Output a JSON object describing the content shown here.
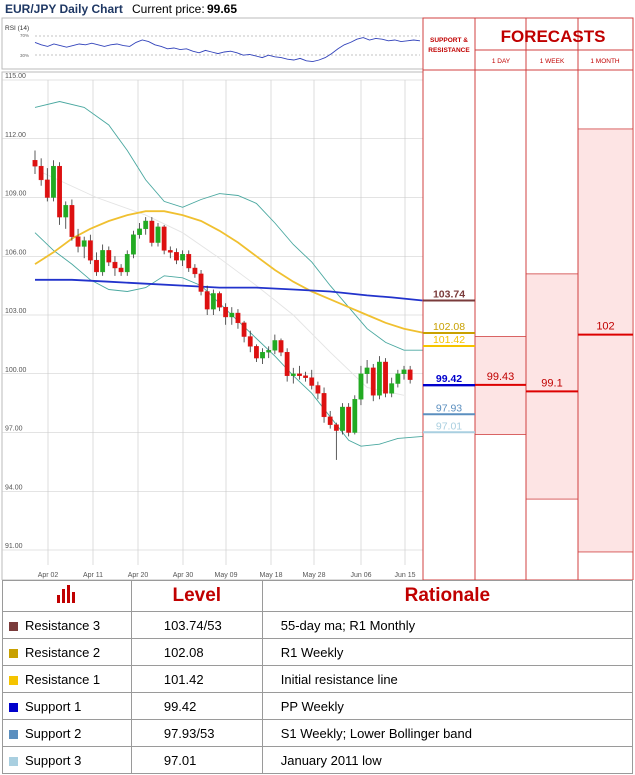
{
  "header": {
    "chart_title": "EUR/JPY Daily Chart",
    "price_label": "Current price:",
    "price_value": "99.65"
  },
  "rsi": {
    "label": "RSI (14)",
    "upper": "70%",
    "lower": "30%"
  },
  "forecast_panel": {
    "sr_title_1": "SUPPORT &",
    "sr_title_2": "RESISTANCE",
    "title": "FORECASTS",
    "columns": [
      "1 DAY",
      "1 WEEK",
      "1 MONTH"
    ],
    "values": [
      "99.43",
      "99.1",
      "102"
    ]
  },
  "colors": {
    "resistance_3": "#7a3b3b",
    "resistance_2": "#c8a000",
    "resistance_1": "#f5c400",
    "support_1": "#0000cc",
    "support_2": "#5b8fbf",
    "support_3": "#a9cfe0",
    "up_candle": "#22aa22",
    "down_candle": "#dd1111",
    "ma_short": "#f0c030",
    "ma_long": "#2233cc",
    "bollinger": "#4aa8a0",
    "forecast_line": "#dd0000",
    "forecast_fill": "#fde4e4"
  },
  "chart_data": {
    "type": "candlestick",
    "title": "EUR/JPY Daily Chart",
    "ylim": [
      91.0,
      115.0
    ],
    "y_ticks": [
      "115.00",
      "112.00",
      "109.00",
      "106.00",
      "103.00",
      "100.00",
      "97.00",
      "94.00",
      "91.00"
    ],
    "x_ticks": [
      "Apr 02",
      "Apr 11",
      "Apr 20",
      "Apr 30",
      "May 09",
      "May 18",
      "May 28",
      "Jun 06",
      "Jun 15"
    ],
    "candles": [
      {
        "o": 110.9,
        "h": 111.4,
        "l": 110.2,
        "c": 110.6
      },
      {
        "o": 110.6,
        "h": 111.0,
        "l": 109.6,
        "c": 109.9
      },
      {
        "o": 109.9,
        "h": 110.5,
        "l": 108.8,
        "c": 109.0
      },
      {
        "o": 109.0,
        "h": 110.9,
        "l": 108.8,
        "c": 110.6
      },
      {
        "o": 110.6,
        "h": 110.8,
        "l": 107.6,
        "c": 108.0
      },
      {
        "o": 108.0,
        "h": 108.8,
        "l": 107.4,
        "c": 108.6
      },
      {
        "o": 108.6,
        "h": 108.9,
        "l": 106.8,
        "c": 107.0
      },
      {
        "o": 107.0,
        "h": 107.4,
        "l": 106.2,
        "c": 106.5
      },
      {
        "o": 106.5,
        "h": 107.0,
        "l": 105.9,
        "c": 106.8
      },
      {
        "o": 106.8,
        "h": 107.1,
        "l": 105.6,
        "c": 105.8
      },
      {
        "o": 105.8,
        "h": 106.2,
        "l": 105.0,
        "c": 105.2
      },
      {
        "o": 105.2,
        "h": 106.6,
        "l": 105.0,
        "c": 106.3
      },
      {
        "o": 106.3,
        "h": 106.5,
        "l": 105.5,
        "c": 105.7
      },
      {
        "o": 105.7,
        "h": 106.0,
        "l": 105.0,
        "c": 105.4
      },
      {
        "o": 105.4,
        "h": 105.6,
        "l": 105.0,
        "c": 105.2
      },
      {
        "o": 105.2,
        "h": 106.3,
        "l": 105.0,
        "c": 106.1
      },
      {
        "o": 106.1,
        "h": 107.3,
        "l": 105.9,
        "c": 107.1
      },
      {
        "o": 107.1,
        "h": 107.7,
        "l": 106.9,
        "c": 107.4
      },
      {
        "o": 107.4,
        "h": 108.0,
        "l": 107.1,
        "c": 107.8
      },
      {
        "o": 107.8,
        "h": 108.0,
        "l": 106.5,
        "c": 106.7
      },
      {
        "o": 106.7,
        "h": 107.7,
        "l": 106.5,
        "c": 107.5
      },
      {
        "o": 107.5,
        "h": 107.6,
        "l": 106.1,
        "c": 106.3
      },
      {
        "o": 106.3,
        "h": 106.5,
        "l": 105.9,
        "c": 106.2
      },
      {
        "o": 106.2,
        "h": 106.4,
        "l": 105.6,
        "c": 105.8
      },
      {
        "o": 105.8,
        "h": 106.3,
        "l": 105.5,
        "c": 106.1
      },
      {
        "o": 106.1,
        "h": 106.3,
        "l": 105.2,
        "c": 105.4
      },
      {
        "o": 105.4,
        "h": 105.6,
        "l": 104.9,
        "c": 105.1
      },
      {
        "o": 105.1,
        "h": 105.3,
        "l": 104.0,
        "c": 104.2
      },
      {
        "o": 104.2,
        "h": 104.5,
        "l": 103.0,
        "c": 103.3
      },
      {
        "o": 103.3,
        "h": 104.3,
        "l": 103.0,
        "c": 104.1
      },
      {
        "o": 104.1,
        "h": 104.2,
        "l": 103.2,
        "c": 103.4
      },
      {
        "o": 103.4,
        "h": 103.6,
        "l": 102.5,
        "c": 102.9
      },
      {
        "o": 102.9,
        "h": 103.4,
        "l": 102.5,
        "c": 103.1
      },
      {
        "o": 103.1,
        "h": 103.3,
        "l": 102.3,
        "c": 102.6
      },
      {
        "o": 102.6,
        "h": 102.7,
        "l": 101.6,
        "c": 101.9
      },
      {
        "o": 101.9,
        "h": 102.2,
        "l": 101.1,
        "c": 101.4
      },
      {
        "o": 101.4,
        "h": 101.5,
        "l": 100.6,
        "c": 100.8
      },
      {
        "o": 100.8,
        "h": 101.3,
        "l": 100.5,
        "c": 101.1
      },
      {
        "o": 101.1,
        "h": 101.4,
        "l": 100.8,
        "c": 101.2
      },
      {
        "o": 101.2,
        "h": 102.0,
        "l": 101.0,
        "c": 101.7
      },
      {
        "o": 101.7,
        "h": 101.8,
        "l": 100.9,
        "c": 101.1
      },
      {
        "o": 101.1,
        "h": 101.3,
        "l": 99.6,
        "c": 99.9
      },
      {
        "o": 99.9,
        "h": 100.3,
        "l": 99.5,
        "c": 100.0
      },
      {
        "o": 100.0,
        "h": 100.4,
        "l": 99.7,
        "c": 99.9
      },
      {
        "o": 99.9,
        "h": 100.1,
        "l": 99.6,
        "c": 99.8
      },
      {
        "o": 99.8,
        "h": 100.2,
        "l": 99.2,
        "c": 99.4
      },
      {
        "o": 99.4,
        "h": 99.6,
        "l": 98.7,
        "c": 99.0
      },
      {
        "o": 99.0,
        "h": 99.3,
        "l": 97.5,
        "c": 97.8
      },
      {
        "o": 97.8,
        "h": 98.1,
        "l": 97.2,
        "c": 97.4
      },
      {
        "o": 97.4,
        "h": 97.5,
        "l": 95.6,
        "c": 97.1
      },
      {
        "o": 97.1,
        "h": 98.5,
        "l": 96.9,
        "c": 98.3
      },
      {
        "o": 98.3,
        "h": 98.5,
        "l": 96.8,
        "c": 97.0
      },
      {
        "o": 97.0,
        "h": 98.9,
        "l": 96.9,
        "c": 98.7
      },
      {
        "o": 98.7,
        "h": 100.4,
        "l": 98.4,
        "c": 100.0
      },
      {
        "o": 100.0,
        "h": 100.7,
        "l": 99.5,
        "c": 100.3
      },
      {
        "o": 100.3,
        "h": 100.5,
        "l": 98.6,
        "c": 98.9
      },
      {
        "o": 98.9,
        "h": 100.9,
        "l": 98.7,
        "c": 100.6
      },
      {
        "o": 100.6,
        "h": 100.8,
        "l": 98.8,
        "c": 99.0
      },
      {
        "o": 99.0,
        "h": 99.8,
        "l": 98.8,
        "c": 99.5
      },
      {
        "o": 99.5,
        "h": 100.2,
        "l": 99.3,
        "c": 100.0
      },
      {
        "o": 100.0,
        "h": 100.4,
        "l": 99.7,
        "c": 100.2
      },
      {
        "o": 100.2,
        "h": 100.4,
        "l": 99.5,
        "c": 99.7
      }
    ],
    "ma_short": [
      [
        0,
        105.6
      ],
      [
        3,
        106.2
      ],
      [
        6,
        106.9
      ],
      [
        9,
        107.4
      ],
      [
        12,
        107.8
      ],
      [
        15,
        108.1
      ],
      [
        18,
        108.3
      ],
      [
        21,
        108.3
      ],
      [
        24,
        108.1
      ],
      [
        27,
        107.8
      ],
      [
        30,
        107.3
      ],
      [
        33,
        106.7
      ],
      [
        36,
        106.0
      ],
      [
        39,
        105.3
      ],
      [
        42,
        104.7
      ],
      [
        45,
        104.2
      ],
      [
        48,
        103.8
      ],
      [
        51,
        103.4
      ],
      [
        54,
        103.0
      ],
      [
        57,
        102.6
      ],
      [
        60,
        102.3
      ],
      [
        63,
        102.1
      ]
    ],
    "ma_long": [
      [
        0,
        104.8
      ],
      [
        6,
        104.8
      ],
      [
        12,
        104.7
      ],
      [
        18,
        104.6
      ],
      [
        24,
        104.5
      ],
      [
        30,
        104.4
      ],
      [
        36,
        104.4
      ],
      [
        42,
        104.3
      ],
      [
        48,
        104.2
      ],
      [
        54,
        104.0
      ],
      [
        58,
        103.9
      ],
      [
        63,
        103.74
      ]
    ],
    "bb_upper": [
      [
        0,
        113.6
      ],
      [
        4,
        113.9
      ],
      [
        8,
        113.6
      ],
      [
        12,
        112.7
      ],
      [
        15,
        111.4
      ],
      [
        18,
        109.9
      ],
      [
        21,
        108.8
      ],
      [
        24,
        108.5
      ],
      [
        27,
        108.9
      ],
      [
        30,
        109.2
      ],
      [
        33,
        109.1
      ],
      [
        36,
        108.7
      ],
      [
        39,
        107.7
      ],
      [
        42,
        106.6
      ],
      [
        45,
        105.7
      ],
      [
        48,
        104.5
      ],
      [
        51,
        103.4
      ],
      [
        54,
        102.3
      ],
      [
        57,
        101.6
      ],
      [
        60,
        101.2
      ],
      [
        63,
        101.2
      ]
    ],
    "bb_lower": [
      [
        0,
        107.2
      ],
      [
        3,
        106.3
      ],
      [
        6,
        105.6
      ],
      [
        9,
        104.8
      ],
      [
        12,
        104.3
      ],
      [
        15,
        104.2
      ],
      [
        18,
        104.4
      ],
      [
        21,
        105.0
      ],
      [
        24,
        104.9
      ],
      [
        27,
        104.5
      ],
      [
        30,
        103.6
      ],
      [
        33,
        102.7
      ],
      [
        36,
        101.8
      ],
      [
        39,
        100.9
      ],
      [
        42,
        99.9
      ],
      [
        45,
        99.0
      ],
      [
        48,
        97.8
      ],
      [
        51,
        96.6
      ],
      [
        53,
        96.3
      ],
      [
        56,
        96.4
      ],
      [
        59,
        96.7
      ],
      [
        63,
        96.8
      ]
    ],
    "mid_line": [
      [
        1,
        110.3
      ],
      [
        10,
        109.0
      ],
      [
        18,
        108.1
      ],
      [
        24,
        107.2
      ],
      [
        30,
        105.9
      ],
      [
        36,
        104.5
      ],
      [
        42,
        103.0
      ],
      [
        48,
        101.1
      ],
      [
        54,
        99.3
      ],
      [
        60,
        98.9
      ]
    ],
    "rsi_values": [
      52,
      49,
      47,
      50,
      48,
      46,
      48,
      50,
      49,
      51,
      49,
      47,
      49,
      50,
      48,
      47,
      52,
      55,
      53,
      49,
      47,
      44,
      45,
      43,
      44,
      41,
      39,
      42,
      40,
      38,
      40,
      41,
      39,
      36,
      37,
      35,
      33,
      36,
      34,
      33,
      31,
      30,
      32,
      29,
      28,
      30,
      33,
      38,
      44,
      49,
      52,
      56,
      58,
      55,
      57,
      56,
      54,
      55,
      53,
      54,
      55,
      54
    ],
    "support_resistance": [
      {
        "name": "Resistance 3",
        "value": 103.74,
        "label": "103.74"
      },
      {
        "name": "Resistance 2",
        "value": 102.08,
        "label": "102.08"
      },
      {
        "name": "Resistance 1",
        "value": 101.42,
        "label": "101.42"
      },
      {
        "name": "Support 1",
        "value": 99.42,
        "label": "99.42"
      },
      {
        "name": "Support 2",
        "value": 97.93,
        "label": "97.93"
      },
      {
        "name": "Support 3",
        "value": 97.01,
        "label": "97.01"
      }
    ],
    "forecasts": [
      {
        "period": "1 DAY",
        "value": 99.43,
        "range": [
          96.9,
          101.9
        ]
      },
      {
        "period": "1 WEEK",
        "value": 99.1,
        "range": [
          93.6,
          105.1
        ]
      },
      {
        "period": "1 MONTH",
        "value": 102,
        "range": [
          90.9,
          112.5
        ]
      }
    ]
  },
  "table": {
    "header_level": "Level",
    "header_rationale": "Rationale",
    "rows": [
      {
        "name": "Resistance 3",
        "level": "103.74/53",
        "rationale": "55-day ma; R1 Monthly"
      },
      {
        "name": "Resistance 2",
        "level": "102.08",
        "rationale": "R1 Weekly"
      },
      {
        "name": "Resistance 1",
        "level": "101.42",
        "rationale": "Initial resistance line"
      },
      {
        "name": "Support 1",
        "level": "99.42",
        "rationale": "PP Weekly"
      },
      {
        "name": "Support 2",
        "level": "97.93/53",
        "rationale": "S1 Weekly; Lower Bollinger band"
      },
      {
        "name": "Support 3",
        "level": "97.01",
        "rationale": "January 2011 low"
      }
    ]
  }
}
